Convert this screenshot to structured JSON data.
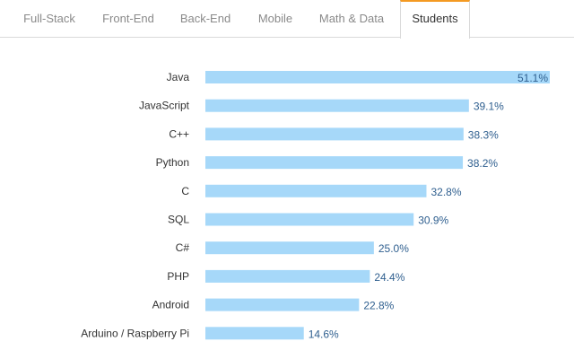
{
  "tabs": [
    {
      "label": "Full-Stack",
      "active": false
    },
    {
      "label": "Front-End",
      "active": false
    },
    {
      "label": "Back-End",
      "active": false
    },
    {
      "label": "Mobile",
      "active": false
    },
    {
      "label": "Math & Data",
      "active": false
    },
    {
      "label": "Students",
      "active": true
    }
  ],
  "colors": {
    "bar": "#a6d8f9",
    "accent": "#f49a22",
    "value_text": "#2f5f8f",
    "label_text": "#333333"
  },
  "chart_data": {
    "type": "bar",
    "orientation": "horizontal",
    "title": "",
    "xlabel": "",
    "ylabel": "",
    "xlim": [
      0,
      51.1
    ],
    "grid": false,
    "categories": [
      "Java",
      "JavaScript",
      "C++",
      "Python",
      "C",
      "SQL",
      "C#",
      "PHP",
      "Android",
      "Arduino / Raspberry Pi"
    ],
    "values": [
      51.1,
      39.1,
      38.3,
      38.2,
      32.8,
      30.9,
      25.0,
      24.4,
      22.8,
      14.6
    ],
    "value_labels": [
      "51.1%",
      "39.1%",
      "38.3%",
      "38.2%",
      "32.8%",
      "30.9%",
      "25.0%",
      "24.4%",
      "22.8%",
      "14.6%"
    ]
  }
}
